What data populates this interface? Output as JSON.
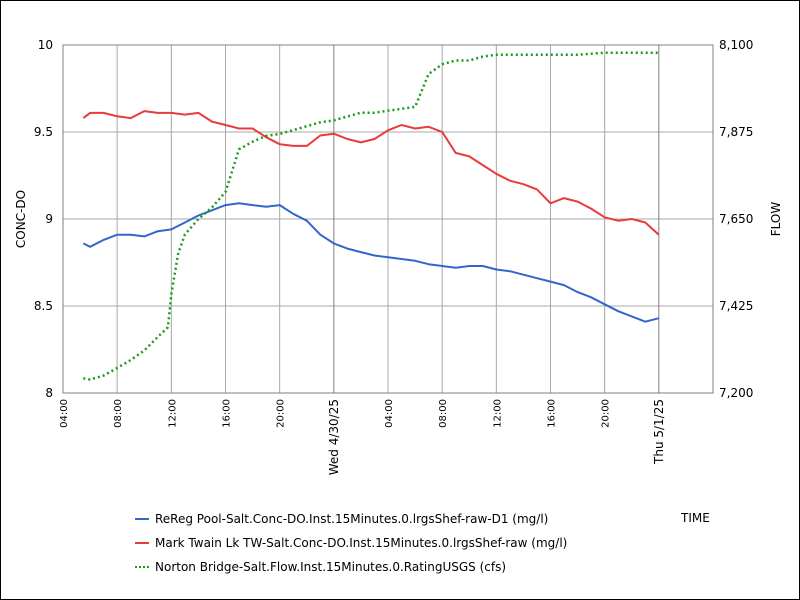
{
  "chart_data": {
    "type": "line",
    "xlabel": "TIME",
    "ylabel_left": "CONC-DO",
    "ylabel_right": "FLOW",
    "x_range": [
      "2025-04-29T04:00",
      "2025-05-01T04:00"
    ],
    "y_left_range": [
      8,
      10
    ],
    "y_right_range": [
      7200,
      8100
    ],
    "y_left_ticks": [
      "8",
      "8.5",
      "9",
      "9.5",
      "10"
    ],
    "y_left_tick_values": [
      8,
      8.5,
      9,
      9.5,
      10
    ],
    "y_right_ticks": [
      "7,200",
      "7,425",
      "7,650",
      "7,875",
      "8,100"
    ],
    "y_right_tick_values": [
      7200,
      7425,
      7650,
      7875,
      8100
    ],
    "x_ticks": [
      {
        "t": "2025-04-29T04:00",
        "label": "04:00"
      },
      {
        "t": "2025-04-29T08:00",
        "label": "08:00"
      },
      {
        "t": "2025-04-29T12:00",
        "label": "12:00"
      },
      {
        "t": "2025-04-29T16:00",
        "label": "16:00"
      },
      {
        "t": "2025-04-29T20:00",
        "label": "20:00"
      },
      {
        "t": "2025-04-30T00:00",
        "label": "Wed 4/30/25"
      },
      {
        "t": "2025-04-30T04:00",
        "label": "04:00"
      },
      {
        "t": "2025-04-30T08:00",
        "label": "08:00"
      },
      {
        "t": "2025-04-30T12:00",
        "label": "12:00"
      },
      {
        "t": "2025-04-30T16:00",
        "label": "16:00"
      },
      {
        "t": "2025-04-30T20:00",
        "label": "20:00"
      },
      {
        "t": "2025-05-01T00:00",
        "label": "Thu 5/1/25"
      }
    ],
    "grid": true,
    "legend_position": "bottom",
    "series": [
      {
        "name": "ReReg Pool-Salt.Conc-DO.Inst.15Minutes.0.lrgsShef-raw-D1 (mg/l)",
        "axis": "left",
        "color": "#3366cc",
        "style": "solid",
        "points": [
          [
            "2025-04-29T05:30",
            8.86
          ],
          [
            "2025-04-29T06:00",
            8.84
          ],
          [
            "2025-04-29T07:00",
            8.88
          ],
          [
            "2025-04-29T08:00",
            8.91
          ],
          [
            "2025-04-29T09:00",
            8.91
          ],
          [
            "2025-04-29T10:00",
            8.9
          ],
          [
            "2025-04-29T11:00",
            8.93
          ],
          [
            "2025-04-29T12:00",
            8.94
          ],
          [
            "2025-04-29T13:00",
            8.98
          ],
          [
            "2025-04-29T14:00",
            9.02
          ],
          [
            "2025-04-29T15:00",
            9.05
          ],
          [
            "2025-04-29T16:00",
            9.08
          ],
          [
            "2025-04-29T17:00",
            9.09
          ],
          [
            "2025-04-29T18:00",
            9.08
          ],
          [
            "2025-04-29T19:00",
            9.07
          ],
          [
            "2025-04-29T20:00",
            9.08
          ],
          [
            "2025-04-29T21:00",
            9.03
          ],
          [
            "2025-04-29T22:00",
            8.99
          ],
          [
            "2025-04-29T23:00",
            8.91
          ],
          [
            "2025-04-30T00:00",
            8.86
          ],
          [
            "2025-04-30T01:00",
            8.83
          ],
          [
            "2025-04-30T02:00",
            8.81
          ],
          [
            "2025-04-30T03:00",
            8.79
          ],
          [
            "2025-04-30T04:00",
            8.78
          ],
          [
            "2025-04-30T05:00",
            8.77
          ],
          [
            "2025-04-30T06:00",
            8.76
          ],
          [
            "2025-04-30T07:00",
            8.74
          ],
          [
            "2025-04-30T08:00",
            8.73
          ],
          [
            "2025-04-30T09:00",
            8.72
          ],
          [
            "2025-04-30T10:00",
            8.73
          ],
          [
            "2025-04-30T11:00",
            8.73
          ],
          [
            "2025-04-30T12:00",
            8.71
          ],
          [
            "2025-04-30T13:00",
            8.7
          ],
          [
            "2025-04-30T14:00",
            8.68
          ],
          [
            "2025-04-30T15:00",
            8.66
          ],
          [
            "2025-04-30T16:00",
            8.64
          ],
          [
            "2025-04-30T17:00",
            8.62
          ],
          [
            "2025-04-30T18:00",
            8.58
          ],
          [
            "2025-04-30T19:00",
            8.55
          ],
          [
            "2025-04-30T20:00",
            8.51
          ],
          [
            "2025-04-30T21:00",
            8.47
          ],
          [
            "2025-04-30T22:00",
            8.44
          ],
          [
            "2025-04-30T23:00",
            8.41
          ],
          [
            "2025-05-01T00:00",
            8.43
          ]
        ]
      },
      {
        "name": "Mark Twain Lk TW-Salt.Conc-DO.Inst.15Minutes.0.lrgsShef-raw (mg/l)",
        "axis": "left",
        "color": "#e83b3b",
        "style": "solid",
        "points": [
          [
            "2025-04-29T05:30",
            9.58
          ],
          [
            "2025-04-29T06:00",
            9.61
          ],
          [
            "2025-04-29T07:00",
            9.61
          ],
          [
            "2025-04-29T08:00",
            9.59
          ],
          [
            "2025-04-29T09:00",
            9.58
          ],
          [
            "2025-04-29T10:00",
            9.62
          ],
          [
            "2025-04-29T11:00",
            9.61
          ],
          [
            "2025-04-29T12:00",
            9.61
          ],
          [
            "2025-04-29T13:00",
            9.6
          ],
          [
            "2025-04-29T14:00",
            9.61
          ],
          [
            "2025-04-29T15:00",
            9.56
          ],
          [
            "2025-04-29T16:00",
            9.54
          ],
          [
            "2025-04-29T17:00",
            9.52
          ],
          [
            "2025-04-29T18:00",
            9.52
          ],
          [
            "2025-04-29T19:00",
            9.47
          ],
          [
            "2025-04-29T20:00",
            9.43
          ],
          [
            "2025-04-29T21:00",
            9.42
          ],
          [
            "2025-04-29T22:00",
            9.42
          ],
          [
            "2025-04-29T23:00",
            9.48
          ],
          [
            "2025-04-30T00:00",
            9.49
          ],
          [
            "2025-04-30T01:00",
            9.46
          ],
          [
            "2025-04-30T02:00",
            9.44
          ],
          [
            "2025-04-30T03:00",
            9.46
          ],
          [
            "2025-04-30T04:00",
            9.51
          ],
          [
            "2025-04-30T05:00",
            9.54
          ],
          [
            "2025-04-30T06:00",
            9.52
          ],
          [
            "2025-04-30T07:00",
            9.53
          ],
          [
            "2025-04-30T08:00",
            9.5
          ],
          [
            "2025-04-30T09:00",
            9.38
          ],
          [
            "2025-04-30T10:00",
            9.36
          ],
          [
            "2025-04-30T11:00",
            9.31
          ],
          [
            "2025-04-30T12:00",
            9.26
          ],
          [
            "2025-04-30T13:00",
            9.22
          ],
          [
            "2025-04-30T14:00",
            9.2
          ],
          [
            "2025-04-30T15:00",
            9.17
          ],
          [
            "2025-04-30T16:00",
            9.09
          ],
          [
            "2025-04-30T17:00",
            9.12
          ],
          [
            "2025-04-30T18:00",
            9.1
          ],
          [
            "2025-04-30T19:00",
            9.06
          ],
          [
            "2025-04-30T20:00",
            9.01
          ],
          [
            "2025-04-30T21:00",
            8.99
          ],
          [
            "2025-04-30T22:00",
            9.0
          ],
          [
            "2025-04-30T23:00",
            8.98
          ],
          [
            "2025-05-01T00:00",
            8.91
          ]
        ]
      },
      {
        "name": "Norton Bridge-Salt.Flow.Inst.15Minutes.0.RatingUSGS (cfs)",
        "axis": "right",
        "color": "#1a9a1a",
        "style": "dotted",
        "points": [
          [
            "2025-04-29T05:30",
            7238
          ],
          [
            "2025-04-29T06:00",
            7235
          ],
          [
            "2025-04-29T07:00",
            7245
          ],
          [
            "2025-04-29T08:00",
            7265
          ],
          [
            "2025-04-29T09:00",
            7285
          ],
          [
            "2025-04-29T10:00",
            7310
          ],
          [
            "2025-04-29T11:00",
            7345
          ],
          [
            "2025-04-29T11:45",
            7370
          ],
          [
            "2025-04-29T12:00",
            7455
          ],
          [
            "2025-04-29T12:30",
            7560
          ],
          [
            "2025-04-29T13:00",
            7610
          ],
          [
            "2025-04-29T14:00",
            7650
          ],
          [
            "2025-04-29T15:00",
            7680
          ],
          [
            "2025-04-29T16:00",
            7720
          ],
          [
            "2025-04-29T17:00",
            7830
          ],
          [
            "2025-04-29T18:00",
            7850
          ],
          [
            "2025-04-29T19:00",
            7865
          ],
          [
            "2025-04-29T20:00",
            7870
          ],
          [
            "2025-04-29T21:00",
            7880
          ],
          [
            "2025-04-29T22:00",
            7890
          ],
          [
            "2025-04-29T23:00",
            7900
          ],
          [
            "2025-04-30T00:00",
            7905
          ],
          [
            "2025-04-30T01:00",
            7915
          ],
          [
            "2025-04-30T02:00",
            7925
          ],
          [
            "2025-04-30T03:00",
            7925
          ],
          [
            "2025-04-30T04:00",
            7930
          ],
          [
            "2025-04-30T05:00",
            7935
          ],
          [
            "2025-04-30T06:00",
            7940
          ],
          [
            "2025-04-30T07:00",
            8025
          ],
          [
            "2025-04-30T08:00",
            8050
          ],
          [
            "2025-04-30T09:00",
            8060
          ],
          [
            "2025-04-30T10:00",
            8060
          ],
          [
            "2025-04-30T11:00",
            8070
          ],
          [
            "2025-04-30T12:00",
            8075
          ],
          [
            "2025-04-30T14:00",
            8075
          ],
          [
            "2025-04-30T16:00",
            8075
          ],
          [
            "2025-04-30T18:00",
            8075
          ],
          [
            "2025-04-30T20:00",
            8080
          ],
          [
            "2025-04-30T22:00",
            8080
          ],
          [
            "2025-05-01T00:00",
            8080
          ]
        ]
      }
    ]
  }
}
